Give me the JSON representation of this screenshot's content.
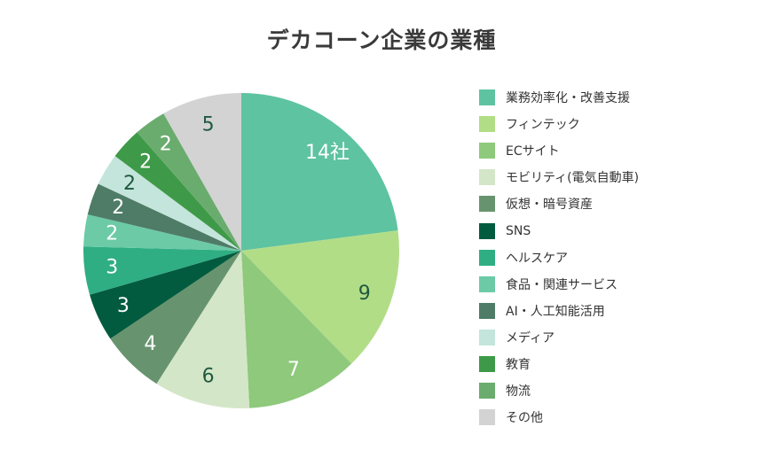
{
  "title": "デカコーン企業の業種",
  "chart_data": {
    "type": "pie",
    "title": "デカコーン企業の業種",
    "start_angle_deg": 0,
    "direction": "clockwise",
    "legend_position": "right",
    "slices": [
      {
        "label": "業務効率化・改善支援",
        "value": 14,
        "display": "14社",
        "color": "#5ec3a0",
        "text_color": "#ffffff"
      },
      {
        "label": "フィンテック",
        "value": 9,
        "display": "9",
        "color": "#b2dd87",
        "text_color": "#1f5a3f"
      },
      {
        "label": "ECサイト",
        "value": 7,
        "display": "7",
        "color": "#8ec97c",
        "text_color": "#ffffff"
      },
      {
        "label": "モビリティ(電気自動車)",
        "value": 6,
        "display": "6",
        "color": "#d4e6c8",
        "text_color": "#1f5a3f"
      },
      {
        "label": "仮想・暗号資産",
        "value": 4,
        "display": "4",
        "color": "#67946f",
        "text_color": "#ffffff"
      },
      {
        "label": "SNS",
        "value": 3,
        "display": "3",
        "color": "#035b3f",
        "text_color": "#ffffff"
      },
      {
        "label": "ヘルスケア",
        "value": 3,
        "display": "3",
        "color": "#2fae83",
        "text_color": "#ffffff"
      },
      {
        "label": "食品・関連サービス",
        "value": 2,
        "display": "2",
        "color": "#6ccaa7",
        "text_color": "#ffffff"
      },
      {
        "label": "AI・人工知能活用",
        "value": 2,
        "display": "2",
        "color": "#4e7c66",
        "text_color": "#ffffff"
      },
      {
        "label": "メディア",
        "value": 2,
        "display": "2",
        "color": "#c4e5db",
        "text_color": "#1f5a3f"
      },
      {
        "label": "教育",
        "value": 2,
        "display": "2",
        "color": "#3e9a48",
        "text_color": "#ffffff"
      },
      {
        "label": "物流",
        "value": 2,
        "display": "2",
        "color": "#6aac6e",
        "text_color": "#ffffff"
      },
      {
        "label": "その他",
        "value": 5,
        "display": "5",
        "color": "#d3d3d3",
        "text_color": "#1f5a3f"
      }
    ]
  }
}
